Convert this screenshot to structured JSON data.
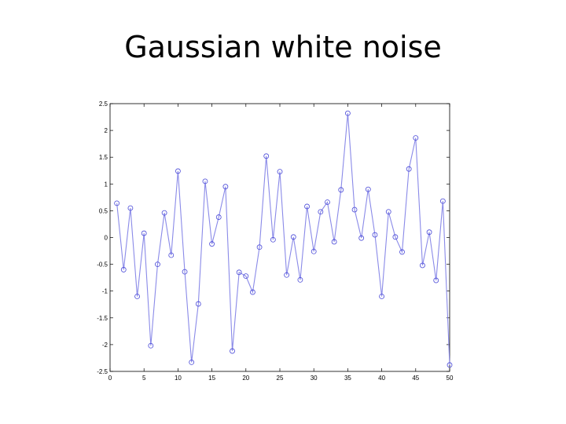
{
  "slide": {
    "title": "Gaussian white noise"
  },
  "colors": {
    "series": "#8a8ae8",
    "marker": "#4a4ad8",
    "axis": "#000000"
  },
  "chart_data": {
    "type": "line",
    "title": "",
    "xlabel": "",
    "ylabel": "",
    "xlim": [
      0,
      50
    ],
    "ylim": [
      -2.5,
      2.5
    ],
    "grid": false,
    "marker": "circle",
    "x_ticks": [
      0,
      5,
      10,
      15,
      20,
      25,
      30,
      35,
      40,
      45,
      50
    ],
    "x_tick_labels": [
      "0",
      "5",
      "10",
      "15",
      "20",
      "25",
      "30",
      "35",
      "40",
      "45",
      "50"
    ],
    "y_ticks": [
      2.5,
      2,
      1.5,
      1,
      0.5,
      0,
      -0.5,
      -1,
      -1.5,
      -2,
      -2.5
    ],
    "y_tick_labels": [
      "2.5",
      "2",
      "1.5",
      "1",
      "0.5",
      "0",
      "-0.5",
      "-1",
      "-1.5",
      "-2",
      "-2.5"
    ],
    "x": [
      1,
      2,
      3,
      4,
      5,
      6,
      7,
      8,
      9,
      10,
      11,
      12,
      13,
      14,
      15,
      16,
      17,
      18,
      19,
      20,
      21,
      22,
      23,
      24,
      25,
      26,
      27,
      28,
      29,
      30,
      31,
      32,
      33,
      34,
      35,
      36,
      37,
      38,
      39,
      40,
      41,
      42,
      43,
      44,
      45,
      46,
      47,
      48,
      49,
      50
    ],
    "y": [
      0.64,
      -0.6,
      0.55,
      -1.1,
      0.08,
      -2.02,
      -0.5,
      0.46,
      -0.33,
      1.24,
      -0.64,
      -2.33,
      -1.24,
      1.05,
      -0.12,
      0.38,
      0.95,
      -2.12,
      -0.65,
      -0.72,
      -1.02,
      -0.18,
      1.52,
      -0.04,
      1.23,
      -0.7,
      0.01,
      -0.79,
      0.58,
      -0.26,
      0.48,
      0.66,
      -0.08,
      0.89,
      2.32,
      0.52,
      -0.01,
      0.9,
      0.05,
      -1.1,
      0.48,
      0.01,
      -0.27,
      1.28,
      1.86,
      -0.52,
      0.1,
      -0.8,
      0.68,
      -2.38
    ]
  }
}
